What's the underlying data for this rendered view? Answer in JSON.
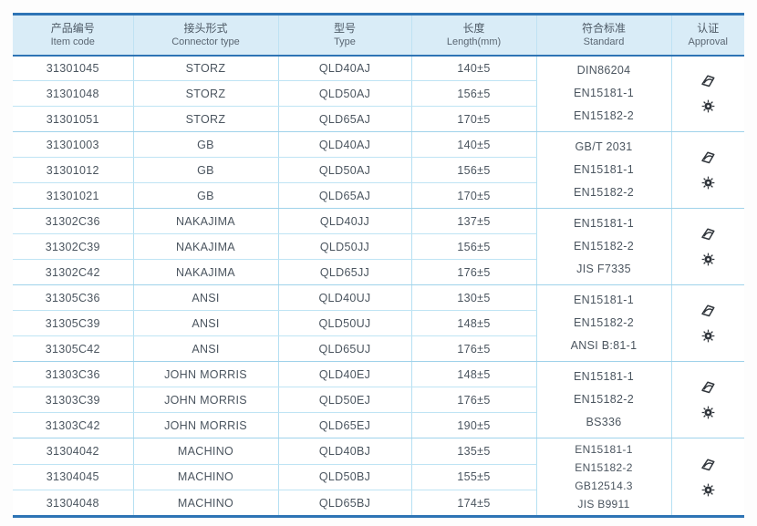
{
  "table": {
    "columns": [
      {
        "zh": "产品编号",
        "en": "Item code"
      },
      {
        "zh": "接头形式",
        "en": "Connector type"
      },
      {
        "zh": "型号",
        "en": "Type"
      },
      {
        "zh": "长度",
        "en": "Length(mm)"
      },
      {
        "zh": "符合标准",
        "en": "Standard"
      },
      {
        "zh": "认证",
        "en": "Approval"
      }
    ],
    "groups": [
      {
        "rows": [
          {
            "code": "31301045",
            "connector": "STORZ",
            "type": "QLD40AJ",
            "length": "140±5"
          },
          {
            "code": "31301048",
            "connector": "STORZ",
            "type": "QLD50AJ",
            "length": "156±5"
          },
          {
            "code": "31301051",
            "connector": "STORZ",
            "type": "QLD65AJ",
            "length": "170±5"
          }
        ],
        "standards": [
          "DIN86204",
          "EN15181-1",
          "EN15182-2"
        ]
      },
      {
        "rows": [
          {
            "code": "31301003",
            "connector": "GB",
            "type": "QLD40AJ",
            "length": "140±5"
          },
          {
            "code": "31301012",
            "connector": "GB",
            "type": "QLD50AJ",
            "length": "156±5"
          },
          {
            "code": "31301021",
            "connector": "GB",
            "type": "QLD65AJ",
            "length": "170±5"
          }
        ],
        "standards": [
          "GB/T 2031",
          "EN15181-1",
          "EN15182-2"
        ]
      },
      {
        "rows": [
          {
            "code": "31302C36",
            "connector": "NAKAJIMA",
            "type": "QLD40JJ",
            "length": "137±5"
          },
          {
            "code": "31302C39",
            "connector": "NAKAJIMA",
            "type": "QLD50JJ",
            "length": "156±5"
          },
          {
            "code": "31302C42",
            "connector": "NAKAJIMA",
            "type": "QLD65JJ",
            "length": "176±5"
          }
        ],
        "standards": [
          "EN15181-1",
          "EN15182-2",
          "JIS F7335"
        ]
      },
      {
        "rows": [
          {
            "code": "31305C36",
            "connector": "ANSI",
            "type": "QLD40UJ",
            "length": "130±5"
          },
          {
            "code": "31305C39",
            "connector": "ANSI",
            "type": "QLD50UJ",
            "length": "148±5"
          },
          {
            "code": "31305C42",
            "connector": "ANSI",
            "type": "QLD65UJ",
            "length": "176±5"
          }
        ],
        "standards": [
          "EN15181-1",
          "EN15182-2",
          "ANSI B:81-1"
        ]
      },
      {
        "rows": [
          {
            "code": "31303C36",
            "connector": "JOHN MORRIS",
            "type": "QLD40EJ",
            "length": "148±5"
          },
          {
            "code": "31303C39",
            "connector": "JOHN MORRIS",
            "type": "QLD50EJ",
            "length": "176±5"
          },
          {
            "code": "31303C42",
            "connector": "JOHN MORRIS",
            "type": "QLD65EJ",
            "length": "190±5"
          }
        ],
        "standards": [
          "EN15181-1",
          "EN15182-2",
          "BS336"
        ]
      },
      {
        "rows": [
          {
            "code": "31304042",
            "connector": "MACHINO",
            "type": "QLD40BJ",
            "length": "135±5"
          },
          {
            "code": "31304045",
            "connector": "MACHINO",
            "type": "QLD50BJ",
            "length": "155±5"
          },
          {
            "code": "31304048",
            "connector": "MACHINO",
            "type": "QLD65BJ",
            "length": "174±5"
          }
        ],
        "standards": [
          "EN15181-1",
          "EN15182-2",
          "GB12514.3",
          "JIS B9911"
        ]
      }
    ],
    "approval_icons": [
      "certification-stamp-icon",
      "wheelmark-seal-icon"
    ]
  },
  "colors": {
    "accent_blue": "#2e74b5",
    "header_bg": "#d9ecf7",
    "grid_line": "#b5e0f2",
    "text": "#4b555f",
    "icon": "#31363c"
  }
}
